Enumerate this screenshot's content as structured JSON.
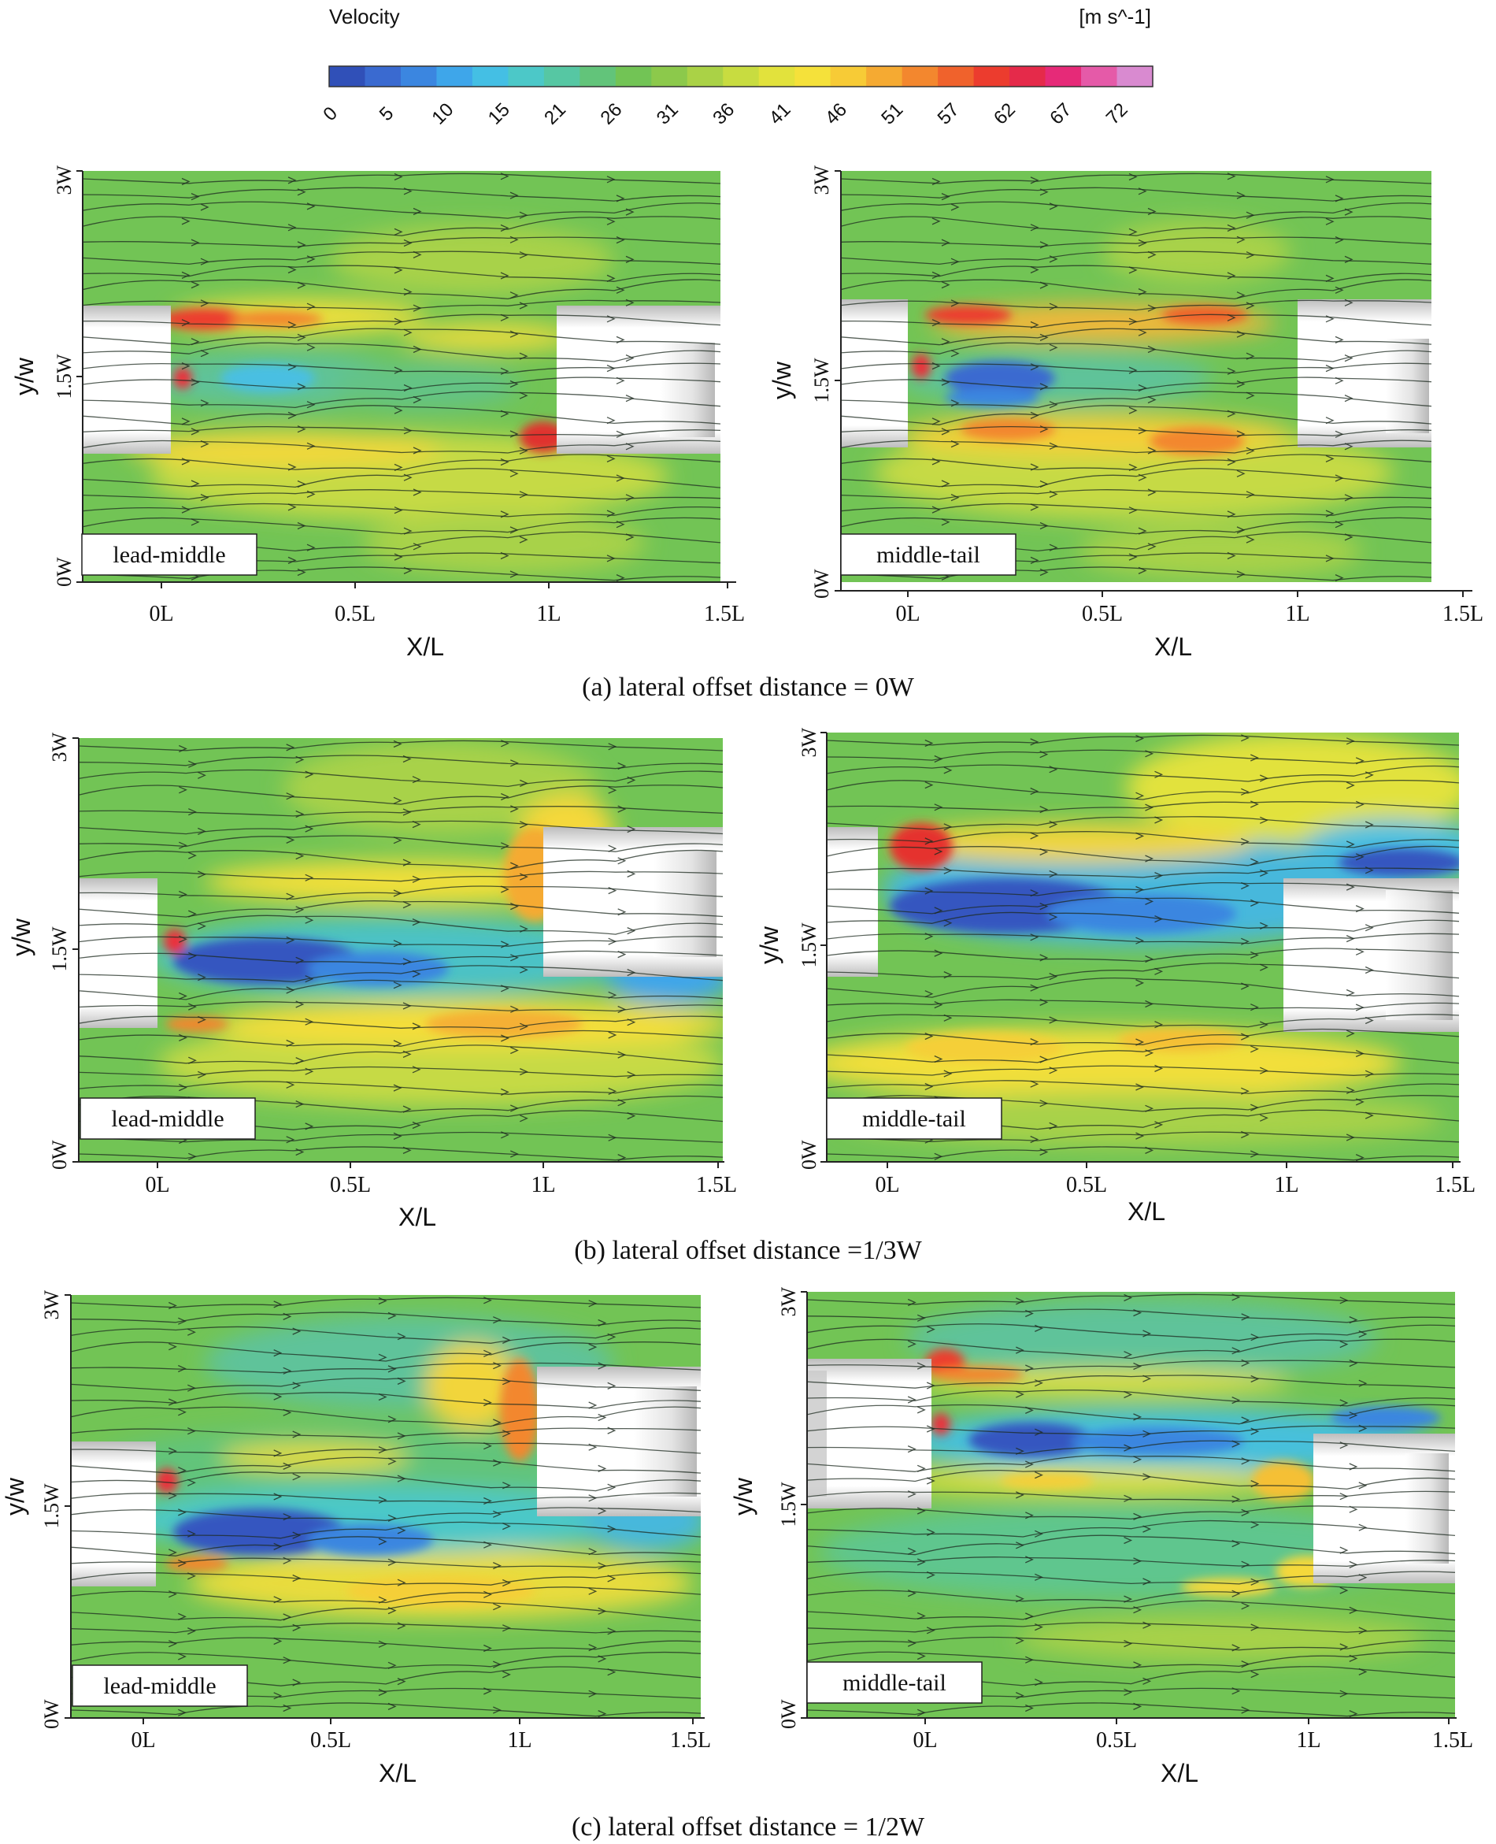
{
  "colorbar": {
    "title": "Velocity",
    "unit": "[m s^-1]",
    "ticks": [
      "0",
      "5",
      "10",
      "15",
      "21",
      "26",
      "31",
      "36",
      "41",
      "46",
      "51",
      "57",
      "62",
      "67",
      "72"
    ],
    "colors": [
      "#3050b8",
      "#3a6ad0",
      "#3b86e0",
      "#3ea6ea",
      "#44bfe4",
      "#4cc8c8",
      "#56c7a3",
      "#62c47a",
      "#72c455",
      "#8cc94b",
      "#aad246",
      "#c8dc40",
      "#e2e23c",
      "#f5e13a",
      "#f7cb36",
      "#f5aa32",
      "#f3872e",
      "#f0622c",
      "#ec3c2e",
      "#e52a4a",
      "#e62a78",
      "#e55aa8",
      "#d98ad0"
    ]
  },
  "panels": [
    {
      "id": "a-lead-middle",
      "label": "lead-middle",
      "xlabel": "X/L",
      "ylabel": "y/w",
      "xticks": [
        "0L",
        "0.5L",
        "1L",
        "1.5L"
      ],
      "yticks": [
        "0W",
        "1.5W",
        "3W"
      ]
    },
    {
      "id": "a-middle-tail",
      "label": "middle-tail",
      "xlabel": "X/L",
      "ylabel": "y/w",
      "xticks": [
        "0L",
        "0.5L",
        "1L",
        "1.5L"
      ],
      "yticks": [
        "0W",
        "1.5W",
        "3W"
      ]
    },
    {
      "id": "b-lead-middle",
      "label": "lead-middle",
      "xlabel": "X/L",
      "ylabel": "y/w",
      "xticks": [
        "0L",
        "0.5L",
        "1L",
        "1.5L"
      ],
      "yticks": [
        "0W",
        "1.5W",
        "3W"
      ]
    },
    {
      "id": "b-middle-tail",
      "label": "middle-tail",
      "xlabel": "X/L",
      "ylabel": "y/w",
      "xticks": [
        "0L",
        "0.5L",
        "1L",
        "1.5L"
      ],
      "yticks": [
        "0W",
        "1.5W",
        "3W"
      ]
    },
    {
      "id": "c-lead-middle",
      "label": "lead-middle",
      "xlabel": "X/L",
      "ylabel": "y/w",
      "xticks": [
        "0L",
        "0.5L",
        "1L",
        "1.5L"
      ],
      "yticks": [
        "0W",
        "1.5W",
        "3W"
      ]
    },
    {
      "id": "c-middle-tail",
      "label": "middle-tail",
      "xlabel": "X/L",
      "ylabel": "y/w",
      "xticks": [
        "0L",
        "0.5L",
        "1L",
        "1.5L"
      ],
      "yticks": [
        "0W",
        "1.5W",
        "3W"
      ]
    }
  ],
  "captions": [
    "(a) lateral offset distance = 0W",
    "(b) lateral offset distance =1/3W",
    "(c) lateral offset distance = 1/2W"
  ]
}
